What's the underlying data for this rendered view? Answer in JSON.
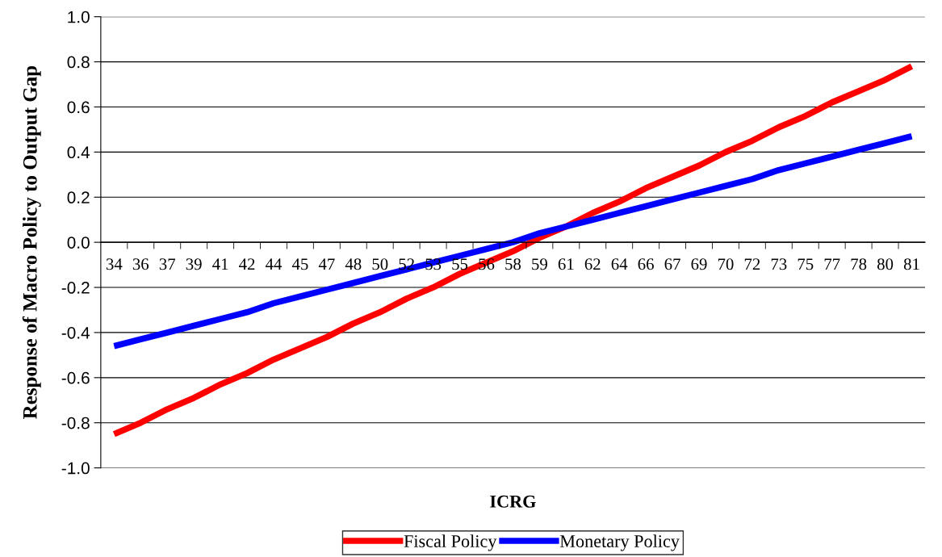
{
  "chart_data": {
    "type": "line",
    "xlabel": "ICRG",
    "ylabel": "Response of Macro Policy to Output Gap",
    "categories": [
      "34",
      "36",
      "37",
      "39",
      "41",
      "42",
      "44",
      "45",
      "47",
      "48",
      "50",
      "52",
      "53",
      "55",
      "56",
      "58",
      "59",
      "61",
      "62",
      "64",
      "66",
      "67",
      "69",
      "70",
      "72",
      "73",
      "75",
      "77",
      "78",
      "80",
      "81"
    ],
    "series": [
      {
        "name": "Fiscal Policy",
        "color": "#ff0000",
        "values": [
          -0.85,
          -0.8,
          -0.74,
          -0.69,
          -0.63,
          -0.58,
          -0.52,
          -0.47,
          -0.42,
          -0.36,
          -0.31,
          -0.25,
          -0.2,
          -0.14,
          -0.09,
          -0.04,
          0.02,
          0.07,
          0.13,
          0.18,
          0.24,
          0.29,
          0.34,
          0.4,
          0.45,
          0.51,
          0.56,
          0.62,
          0.67,
          0.72,
          0.78
        ]
      },
      {
        "name": "Monetary Policy",
        "color": "#0000ff",
        "values": [
          -0.46,
          -0.43,
          -0.4,
          -0.37,
          -0.34,
          -0.31,
          -0.27,
          -0.24,
          -0.21,
          -0.18,
          -0.15,
          -0.12,
          -0.09,
          -0.06,
          -0.03,
          0.0,
          0.04,
          0.07,
          0.1,
          0.13,
          0.16,
          0.19,
          0.22,
          0.25,
          0.28,
          0.32,
          0.35,
          0.38,
          0.41,
          0.44,
          0.47
        ]
      }
    ],
    "ylim": [
      -1.0,
      1.0
    ],
    "yticks": [
      {
        "value": -1.0,
        "label": "-1.0"
      },
      {
        "value": -0.8,
        "label": "-0.8"
      },
      {
        "value": -0.6,
        "label": "-0.6"
      },
      {
        "value": -0.4,
        "label": "-0.4"
      },
      {
        "value": -0.2,
        "label": "-0.2"
      },
      {
        "value": 0.0,
        "label": "0.0"
      },
      {
        "value": 0.2,
        "label": "0.2"
      },
      {
        "value": 0.4,
        "label": "0.4"
      },
      {
        "value": 0.6,
        "label": "0.6"
      },
      {
        "value": 0.8,
        "label": "0.8"
      },
      {
        "value": 1.0,
        "label": "1.0"
      }
    ],
    "grid": "y",
    "legend": "bottom",
    "marker": "none",
    "line_style": "solid"
  }
}
